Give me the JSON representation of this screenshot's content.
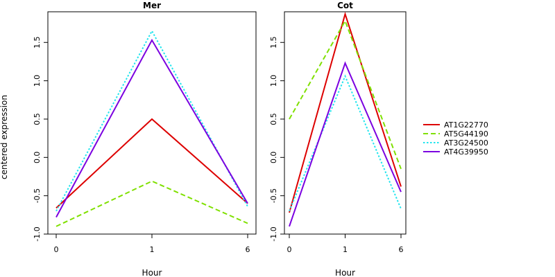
{
  "ylabel": "centered expression",
  "chart_data": [
    {
      "type": "line",
      "title": "Mer",
      "xlabel": "Hour",
      "ylabel": "centered expression",
      "x": [
        0,
        1,
        6
      ],
      "x_tick_labels": [
        "0",
        "1",
        "6"
      ],
      "ylim": [
        -1.0,
        1.9
      ],
      "y_ticks": [
        -1.0,
        -0.5,
        0.0,
        0.5,
        1.0,
        1.5
      ],
      "y_tick_labels": [
        "-1.0",
        "-0.5",
        "0.0",
        "0.5",
        "1.0",
        "1.5"
      ],
      "grid": false,
      "series": [
        {
          "name": "AT1G22770",
          "values": [
            -0.66,
            0.5,
            -0.6
          ]
        },
        {
          "name": "AT5G44190",
          "values": [
            -0.9,
            -0.31,
            -0.86
          ]
        },
        {
          "name": "AT3G24500",
          "values": [
            -0.7,
            1.65,
            -0.64
          ]
        },
        {
          "name": "AT4G39950",
          "values": [
            -0.78,
            1.53,
            -0.6
          ]
        }
      ]
    },
    {
      "type": "line",
      "title": "Cot",
      "xlabel": "Hour",
      "ylabel": "",
      "x": [
        0,
        1,
        6
      ],
      "x_tick_labels": [
        "0",
        "1",
        "6"
      ],
      "ylim": [
        -1.0,
        1.9
      ],
      "y_ticks": [
        -1.0,
        -0.5,
        0.0,
        0.5,
        1.0,
        1.5
      ],
      "y_tick_labels": [
        "-1.0",
        "-0.5",
        "0.0",
        "0.5",
        "1.0",
        "1.5"
      ],
      "grid": false,
      "series": [
        {
          "name": "AT1G22770",
          "values": [
            -0.72,
            1.87,
            -0.38
          ]
        },
        {
          "name": "AT5G44190",
          "values": [
            0.5,
            1.78,
            -0.15
          ]
        },
        {
          "name": "AT3G24500",
          "values": [
            -0.7,
            1.06,
            -0.67
          ]
        },
        {
          "name": "AT4G39950",
          "values": [
            -0.9,
            1.23,
            -0.45
          ]
        }
      ]
    }
  ],
  "legend": {
    "placement": "right",
    "entries": [
      {
        "label": "AT1G22770",
        "color": "#dd0000",
        "dash": "solid"
      },
      {
        "label": "AT5G44190",
        "color": "#7fe000",
        "dash": "dashed"
      },
      {
        "label": "AT3G24500",
        "color": "#22e5ee",
        "dash": "dotted"
      },
      {
        "label": "AT4G39950",
        "color": "#7b00e0",
        "dash": "solid"
      }
    ]
  }
}
